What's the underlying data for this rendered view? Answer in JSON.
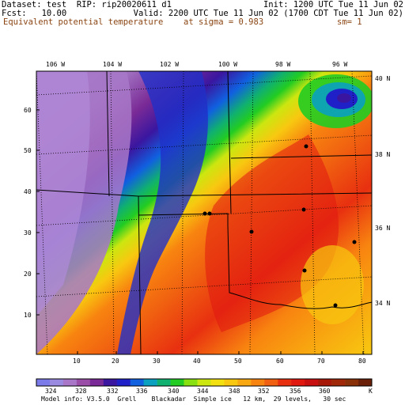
{
  "header": {
    "line1_left": "Dataset: test  RIP: rip20020611 d1",
    "line1_right": "Init: 1200 UTC Tue 11 Jun 02",
    "line2_left": "Fcst:   10.00",
    "line2_right": "Valid: 2200 UTC Tue 11 Jun 02 (1700 CDT Tue 11 Jun 02)",
    "line3_left": "Equivalent potential temperature",
    "line3_mid": "at sigma = 0.983",
    "line3_right": "sm= 1"
  },
  "lon_labels": [
    "106 W",
    "104 W",
    "102 W",
    "100 W",
    "98 W",
    "96 W"
  ],
  "lat_labels": [
    "40 N",
    "38 N",
    "36 N",
    "34 N"
  ],
  "grid_y_ticks": [
    "60",
    "50",
    "40",
    "30",
    "20",
    "10"
  ],
  "grid_x_ticks": [
    "10",
    "20",
    "30",
    "40",
    "50",
    "60",
    "70",
    "80"
  ],
  "colorbar": {
    "labels": [
      "324",
      "328",
      "332",
      "336",
      "340",
      "344",
      "348",
      "352",
      "356",
      "360",
      "K"
    ],
    "colors": [
      "#7a7ae8",
      "#9a8ae0",
      "#a877c8",
      "#9a4ea8",
      "#7a2a96",
      "#3a16a0",
      "#2020c8",
      "#1060e0",
      "#0aa0c0",
      "#10b070",
      "#22cc22",
      "#88e010",
      "#cce610",
      "#f2e010",
      "#f8c810",
      "#f8a810",
      "#f88410",
      "#f06010",
      "#e83010",
      "#e01810",
      "#c81010",
      "#a81808",
      "#a02808",
      "#8a3008",
      "#6a2008"
    ]
  },
  "footer": "Model info: V3.5.0  Grell    Blackadar  Simple ice   12 km,  29 levels,   30 sec"
}
